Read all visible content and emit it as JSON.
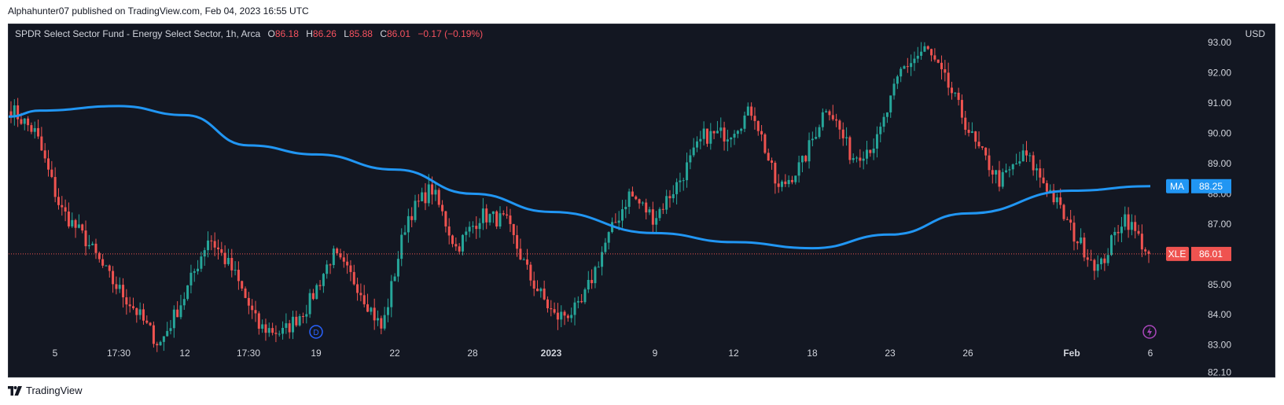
{
  "header": {
    "published_line": "Alphahunter07 published on TradingView.com, Feb 04, 2023 16:55 UTC"
  },
  "legend": {
    "symbol_description": "SPDR Select Sector Fund - Energy Select Sector, 1h, Arca",
    "open_label": "O",
    "open_value": "86.18",
    "high_label": "H",
    "high_value": "86.26",
    "low_label": "L",
    "low_value": "85.88",
    "close_label": "C",
    "close_value": "86.01",
    "change": "−0.17 (−0.19%)"
  },
  "price_axis": {
    "currency": "USD",
    "ticks": [
      "93.00",
      "92.00",
      "91.00",
      "90.00",
      "89.00",
      "88.00",
      "87.00",
      "86.00",
      "85.00",
      "84.00",
      "83.00",
      "82.10"
    ],
    "ma_tag_label": "MA",
    "ma_tag_value": "88.25",
    "last_tag_label": "XLE",
    "last_tag_value": "86.01"
  },
  "time_axis": {
    "labels": [
      "5",
      "17:30",
      "12",
      "17:30",
      "19",
      "22",
      "28",
      "2023",
      "9",
      "12",
      "18",
      "23",
      "26",
      "Feb",
      "6"
    ],
    "bold_labels": [
      "2023",
      "Feb"
    ]
  },
  "markers": {
    "dividend_letter": "D",
    "dividend_label_index": 4
  },
  "footer": {
    "brand": "TradingView"
  },
  "colors": {
    "background": "#131722",
    "up": "#26a69a",
    "down": "#ef5350",
    "ma": "#2196f3",
    "last_price_line": "#ef5350",
    "dividend": "#2962ff",
    "earnings": "#ab47bc"
  },
  "chart_data": {
    "type": "candlestick",
    "symbol": "XLE",
    "interval": "1h",
    "ylim": [
      81.9,
      93.6
    ],
    "last_close": 86.01,
    "close_path_keypoints": [
      {
        "x": "Jan 4",
        "close": 90.8
      },
      {
        "x": "Jan 5",
        "close": 90.0
      },
      {
        "x": "Jan 5",
        "close": 87.5
      },
      {
        "x": "Jan 6",
        "close": 86.5
      },
      {
        "x": "Jan 9",
        "close": 85.2
      },
      {
        "x": "Jan 10",
        "close": 84.2
      },
      {
        "x": "Jan 12",
        "close": 83.0
      },
      {
        "x": "Jan 12",
        "close": 84.6
      },
      {
        "x": "Jan 13",
        "close": 86.6
      },
      {
        "x": "Jan 17",
        "close": 85.4
      },
      {
        "x": "Jan 18",
        "close": 83.6
      },
      {
        "x": "Jan 19",
        "close": 83.4
      },
      {
        "x": "Jan 20",
        "close": 84.3
      },
      {
        "x": "Jan 21",
        "close": 86.0
      },
      {
        "x": "Jan 22",
        "close": 85.0
      },
      {
        "x": "Jan 23",
        "close": 83.5
      },
      {
        "x": "Jan 24",
        "close": 87.2
      },
      {
        "x": "Jan 26",
        "close": 88.2
      },
      {
        "x": "Jan 28",
        "close": 86.2
      },
      {
        "x": "Jan 29",
        "close": 87.3
      },
      {
        "x": "2023",
        "close": 87.1
      },
      {
        "x": "Jan 3",
        "close": 85.2
      },
      {
        "x": "Jan 4",
        "close": 83.9
      },
      {
        "x": "Jan 6",
        "close": 84.2
      },
      {
        "x": "Jan 7",
        "close": 86.3
      },
      {
        "x": "Jan 9",
        "close": 88.0
      },
      {
        "x": "Jan 10",
        "close": 87.2
      },
      {
        "x": "Jan 11",
        "close": 88.4
      },
      {
        "x": "Jan 12",
        "close": 89.9
      },
      {
        "x": "Jan 16",
        "close": 90.0
      },
      {
        "x": "Jan 18",
        "close": 90.8
      },
      {
        "x": "Jan 19",
        "close": 88.1
      },
      {
        "x": "Jan 20",
        "close": 89.0
      },
      {
        "x": "Jan 23",
        "close": 91.0
      },
      {
        "x": "Jan 24",
        "close": 89.2
      },
      {
        "x": "Jan 25",
        "close": 89.7
      },
      {
        "x": "Jan 26",
        "close": 92.1
      },
      {
        "x": "Jan 27",
        "close": 92.8
      },
      {
        "x": "Jan 28",
        "close": 91.4
      },
      {
        "x": "Jan 30",
        "close": 89.6
      },
      {
        "x": "Jan 31",
        "close": 88.4
      },
      {
        "x": "Feb 1",
        "close": 89.3
      },
      {
        "x": "Feb 2",
        "close": 88.1
      },
      {
        "x": "Feb 3",
        "close": 86.6
      },
      {
        "x": "Feb 3",
        "close": 85.5
      },
      {
        "x": "Feb 3",
        "close": 87.3
      },
      {
        "x": "Feb 6",
        "close": 86.01
      }
    ],
    "series": [
      {
        "name": "MA",
        "values": [
          {
            "x": "5",
            "y": 90.55
          },
          {
            "x": "17:30",
            "y": 90.9
          },
          {
            "x": "12",
            "y": 90.6
          },
          {
            "x": "17:30",
            "y": 89.6
          },
          {
            "x": "19",
            "y": 89.3
          },
          {
            "x": "22",
            "y": 88.8
          },
          {
            "x": "28",
            "y": 88.0
          },
          {
            "x": "2023",
            "y": 87.4
          },
          {
            "x": "9",
            "y": 86.7
          },
          {
            "x": "12",
            "y": 86.4
          },
          {
            "x": "18",
            "y": 86.2
          },
          {
            "x": "23",
            "y": 86.65
          },
          {
            "x": "26",
            "y": 87.35
          },
          {
            "x": "Feb",
            "y": 88.1
          },
          {
            "x": "6",
            "y": 88.25
          }
        ]
      }
    ]
  }
}
